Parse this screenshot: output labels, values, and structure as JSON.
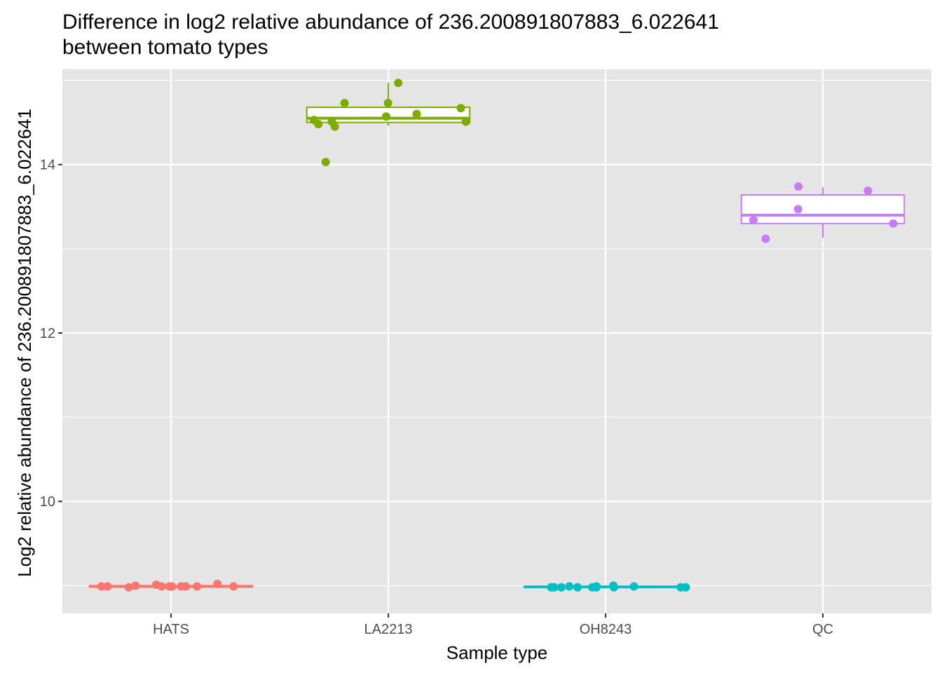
{
  "chart_data": {
    "type": "box",
    "title_line1": "Difference in log2 relative abundance of 236.200891807883_6.022641",
    "title_line2": "between tomato types",
    "xlabel": "Sample type",
    "ylabel": "Log2 relative abundance of 236.200891807883_6.022641",
    "categories": [
      "HATS",
      "LA2213",
      "OH8243",
      "QC"
    ],
    "y_ticks": [
      10,
      12,
      14
    ],
    "y_tick_labels": [
      "10",
      "12",
      "14"
    ],
    "ylim": [
      8.67,
      15.13
    ],
    "grid": true,
    "legend": "none",
    "panel_background": "#e5e5e5",
    "colors": [
      "#f8766d",
      "#7cae00",
      "#00bfc4",
      "#c77cff"
    ],
    "boxes": [
      {
        "category": "HATS",
        "min": 8.97,
        "q1": 8.985,
        "median": 8.99,
        "q3": 9.0,
        "max": 9.02
      },
      {
        "category": "LA2213",
        "min": 14.46,
        "q1": 14.5,
        "median": 14.55,
        "q3": 14.68,
        "max": 14.97
      },
      {
        "category": "OH8243",
        "min": 8.97,
        "q1": 8.98,
        "median": 8.985,
        "q3": 8.99,
        "max": 9.0
      },
      {
        "category": "QC",
        "min": 13.13,
        "q1": 13.3,
        "median": 13.4,
        "q3": 13.64,
        "max": 13.73
      }
    ],
    "points": [
      {
        "category": "HATS",
        "values": [
          8.99,
          8.99,
          8.99,
          8.98,
          8.99,
          8.99,
          8.99,
          8.99,
          8.99,
          9.01,
          9.0,
          9.02,
          8.99
        ]
      },
      {
        "category": "LA2213",
        "values": [
          14.48,
          14.73,
          14.73,
          14.6,
          14.51,
          14.97,
          14.57,
          14.45,
          14.53,
          14.67,
          14.51,
          14.03
        ]
      },
      {
        "category": "OH8243",
        "values": [
          8.98,
          8.98,
          8.98,
          8.98,
          8.98,
          8.99,
          8.99,
          8.98,
          8.98,
          8.99,
          8.98,
          9.0,
          8.98
        ]
      },
      {
        "category": "QC",
        "values": [
          13.12,
          13.69,
          13.74,
          13.47,
          13.34,
          13.3
        ]
      }
    ]
  }
}
